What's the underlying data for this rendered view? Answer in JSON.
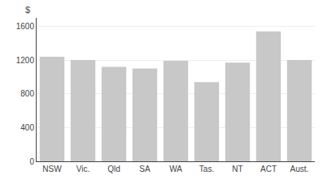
{
  "chart_data": {
    "type": "bar",
    "ylabel": "$",
    "categories": [
      "NSW",
      "Vic.",
      "Qld",
      "SA",
      "WA",
      "Tas.",
      "NT",
      "ACT",
      "Aust."
    ],
    "values": [
      1240,
      1200,
      1120,
      1100,
      1190,
      940,
      1170,
      1540,
      1200
    ],
    "color": "#c8c8c8",
    "ylim": [
      0,
      1700
    ],
    "yticks": [
      0,
      400,
      800,
      1200,
      1600
    ],
    "grid": true
  }
}
